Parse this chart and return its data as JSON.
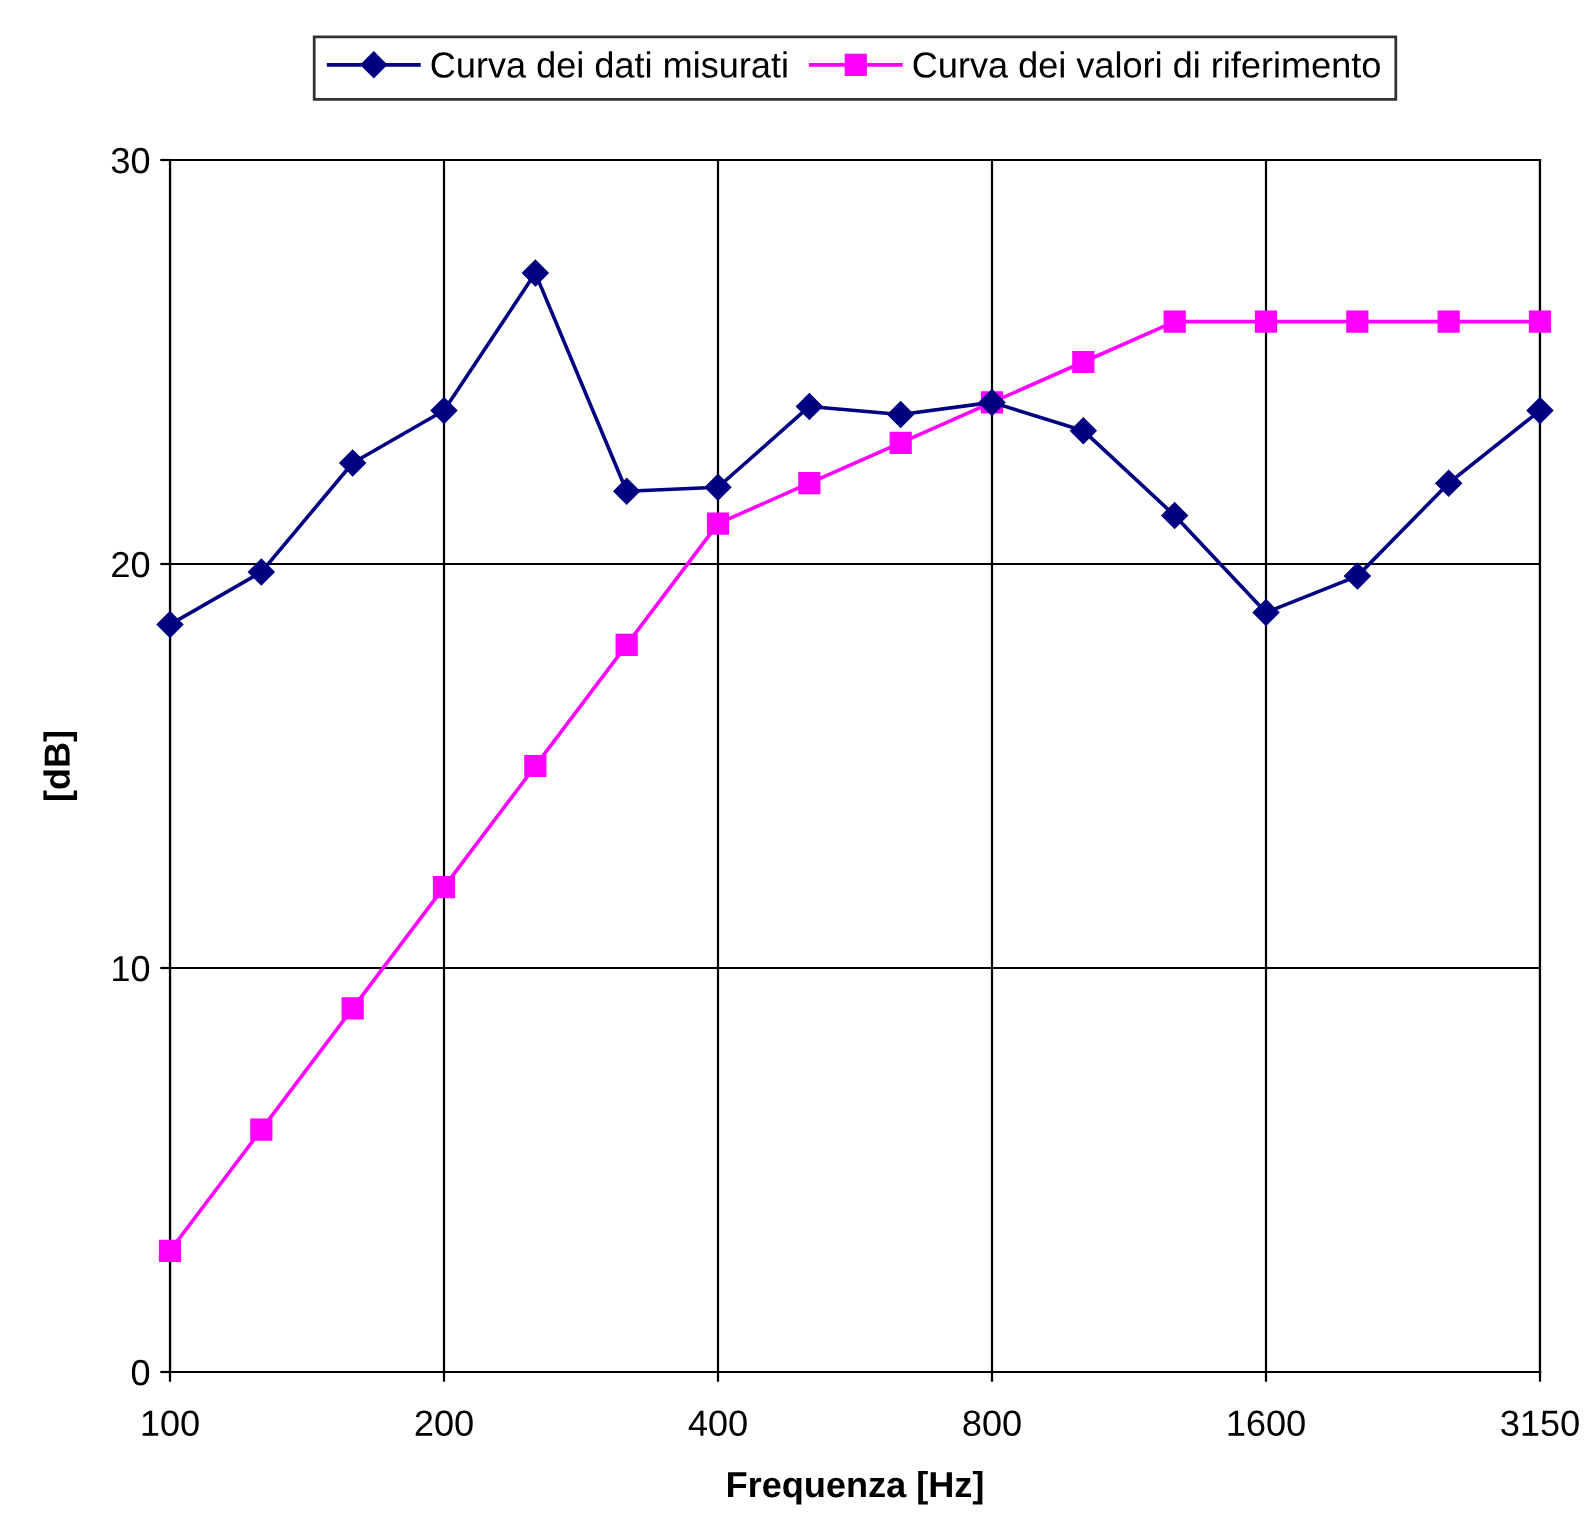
{
  "chart_data": {
    "type": "line",
    "xlabel": "Frequenza [Hz]",
    "ylabel": "[dB]",
    "categories": [
      "100",
      null,
      null,
      "200",
      null,
      null,
      "400",
      null,
      null,
      "800",
      null,
      null,
      "1600",
      null,
      null,
      "3150"
    ],
    "series": [
      {
        "name": "Curva dei dati misurati",
        "color": "#000080",
        "marker": "diamond",
        "values": [
          18.5,
          19.8,
          22.5,
          23.8,
          27.2,
          21.8,
          21.9,
          23.9,
          23.7,
          24.0,
          23.3,
          21.2,
          18.8,
          19.7,
          22.0,
          23.8
        ]
      },
      {
        "name": "Curva dei valori di riferimento",
        "color": "#ff00ff",
        "marker": "square",
        "values": [
          3,
          6,
          9,
          12,
          15,
          18,
          21,
          22,
          23,
          24,
          25,
          26,
          26,
          26,
          26,
          26
        ]
      }
    ],
    "ylim": [
      0,
      30
    ],
    "yticks": [
      0,
      10,
      20,
      30
    ],
    "grid": true,
    "legend": "top",
    "line_style": "solid"
  }
}
